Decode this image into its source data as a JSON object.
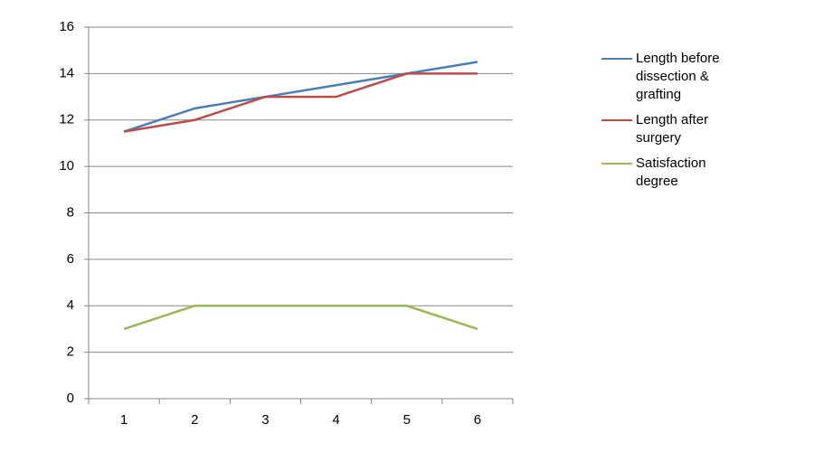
{
  "chart_data": {
    "type": "line",
    "categories": [
      "1",
      "2",
      "3",
      "4",
      "5",
      "6"
    ],
    "series": [
      {
        "name": "Length before dissection & grafting",
        "color": "#4a7ebb",
        "values": [
          11.5,
          12.5,
          13,
          13.5,
          14,
          14.5
        ]
      },
      {
        "name": "Length after surgery",
        "color": "#be4b48",
        "values": [
          11.5,
          12,
          13,
          13,
          14,
          14
        ]
      },
      {
        "name": "Satisfaction degree",
        "color": "#98b954",
        "values": [
          3,
          4,
          4,
          4,
          4,
          3
        ]
      }
    ],
    "ylim": [
      0,
      16
    ],
    "yticks": [
      0,
      2,
      4,
      6,
      8,
      10,
      12,
      14,
      16
    ],
    "grid": true,
    "legend": "right"
  }
}
